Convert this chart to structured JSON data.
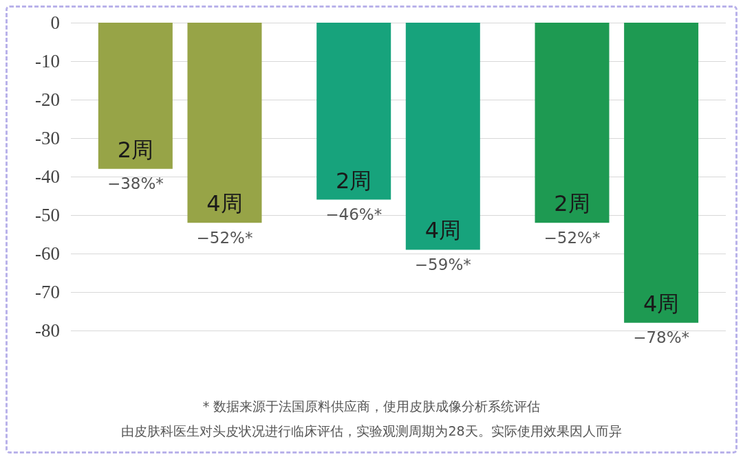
{
  "chart_data": {
    "type": "bar",
    "categories": [
      null,
      null,
      null
    ],
    "series": [
      {
        "name": "2周",
        "colors": [
          "#97a447",
          "#17a37c",
          "#1e9a52"
        ],
        "values": [
          -38,
          -46,
          -52
        ],
        "value_labels": [
          "−38%*",
          "−46%*",
          "−52%*"
        ]
      },
      {
        "name": "4周",
        "colors": [
          "#97a447",
          "#17a37c",
          "#1e9a52"
        ],
        "values": [
          -52,
          -59,
          -78
        ],
        "value_labels": [
          "−52%*",
          "−59%*",
          "−78%*"
        ]
      }
    ],
    "ylim": [
      -80,
      0
    ],
    "yticks": [
      0,
      -10,
      -20,
      -30,
      -40,
      -50,
      -60,
      -70,
      -80
    ],
    "grid": "y",
    "legend": false,
    "annotations": [
      "* 数据来源于法国原料供应商，使用皮肤成像分析系统评估",
      "由皮肤科医生对头皮状况进行临床评估，实验观测周期为28天。实际使用效果因人而异"
    ]
  }
}
